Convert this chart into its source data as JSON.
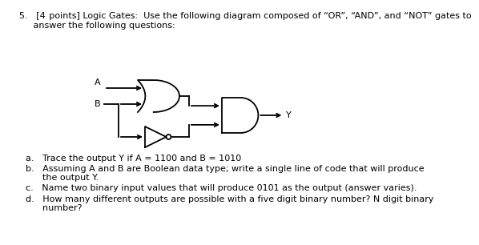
{
  "title_line1": "5.   [4 points] Logic Gates:  Use the following diagram composed of “OR”, “AND”, and “NOT” gates to",
  "title_line2": "     answer the following questions:",
  "label_A": "A",
  "label_B": "B",
  "label_Y": "Y",
  "q_a": "a.   Trace the output Y if A = 1100 and B = 1010",
  "q_b_1": "b.   Assuming A and B are Boolean data type; write a single line of code that will produce",
  "q_b_2": "      the output Y.",
  "q_c": "c.   Name two binary input values that will produce 0101 as the output (answer varies).",
  "q_d_1": "d.   How many different outputs are possible with a five digit binary number? N digit binary",
  "q_d_2": "      number?",
  "bg_color": "#ffffff",
  "text_color": "#000000",
  "font_size": 8.0
}
